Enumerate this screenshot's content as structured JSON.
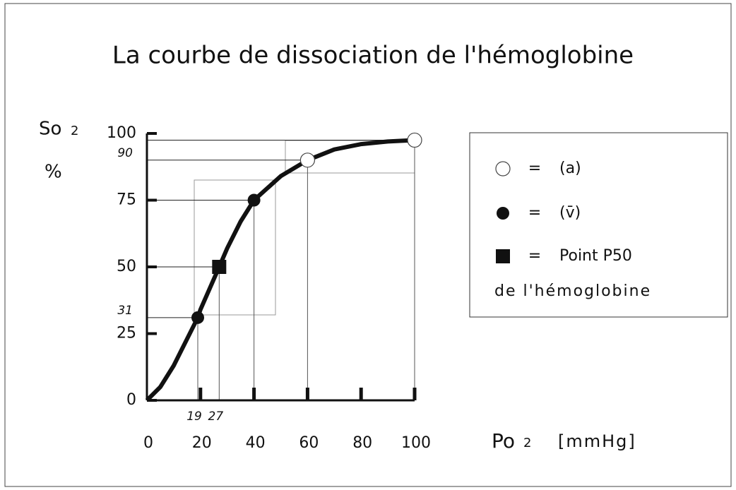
{
  "chart_data": {
    "type": "line",
    "title": "La courbe de dissociation de l'hémoglobine",
    "y_label": "So",
    "y_label_sub": "2",
    "y_unit": "%",
    "x_label": "Po",
    "x_label_sub": "2",
    "x_unit": "[mmHg]",
    "xlim": [
      0,
      100
    ],
    "ylim": [
      0,
      100
    ],
    "xticks": [
      0,
      20,
      40,
      60,
      80,
      100
    ],
    "yticks": [
      0,
      25,
      50,
      75,
      100
    ],
    "x_marks": [
      19,
      27
    ],
    "y_marks": [
      31,
      90
    ],
    "curve": {
      "color": "#111111",
      "x": [
        0,
        5,
        10,
        15,
        19,
        20,
        27,
        30,
        35,
        40,
        50,
        60,
        70,
        80,
        90,
        100
      ],
      "values": [
        0,
        5,
        13,
        23,
        31,
        34,
        50,
        57,
        67,
        75,
        84,
        90,
        94,
        96,
        97,
        97.5
      ]
    },
    "series": [
      {
        "name": "(a)",
        "marker": "open-circle",
        "color": "#ffffff",
        "x": [
          60,
          100
        ],
        "values": [
          90,
          97.5
        ]
      },
      {
        "name": "(v̄)",
        "marker": "circle",
        "color": "#111111",
        "x": [
          19,
          40
        ],
        "values": [
          31,
          75
        ]
      },
      {
        "name": "Point P50",
        "marker": "square",
        "color": "#111111",
        "x": [
          27
        ],
        "values": [
          50
        ]
      }
    ],
    "legend_separator": "=",
    "legend_note": "de l'hémoglobine"
  }
}
